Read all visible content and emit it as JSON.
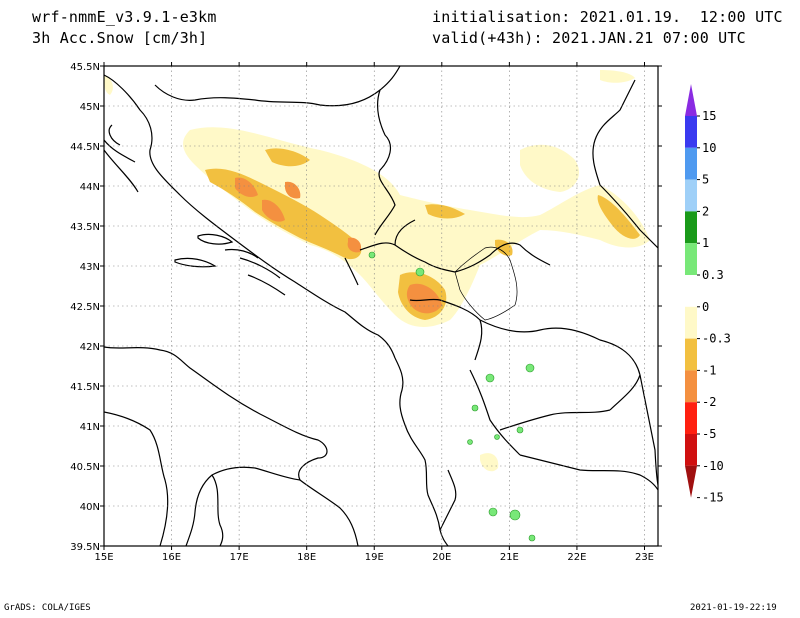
{
  "header": {
    "model": "wrf-nmmE_v3.9.1-e3km",
    "variable": "3h Acc.Snow [cm/3h]",
    "initialisation": "initialisation: 2021.01.19.  12:00 UTC",
    "valid": "valid(+43h): 2021.JAN.21 07:00 UTC"
  },
  "footer": {
    "left": "GrADS: COLA/IGES",
    "right": "2021-01-19-22:19"
  },
  "axes": {
    "lat_labels": [
      "45.5N",
      "45N",
      "44.5N",
      "44N",
      "43.5N",
      "43N",
      "42.5N",
      "42N",
      "41.5N",
      "41N",
      "40.5N",
      "40N",
      "39.5N"
    ],
    "lon_labels": [
      "15E",
      "16E",
      "17E",
      "18E",
      "19E",
      "20E",
      "21E",
      "22E",
      "23E"
    ],
    "lat_range": [
      39.5,
      45.5
    ],
    "lon_range": [
      15,
      23.2
    ],
    "grid": "dotted"
  },
  "colorbar": {
    "labels": [
      "15",
      "10",
      "5",
      "2",
      "1",
      "0.3",
      "0",
      "-0.3",
      "-1",
      "-2",
      "-5",
      "-10",
      "-15"
    ],
    "colors": [
      "#8a2be2",
      "#3a3af0",
      "#4f9af0",
      "#9fd0f8",
      "#1a9a1a",
      "#78e878",
      "#ffffff",
      "#fff9c8",
      "#f2c040",
      "#f49040",
      "#ff2010",
      "#d01010",
      "#a01010"
    ]
  },
  "map": {
    "title": "",
    "feature_colors": {
      "snow_light": "#fff9c8",
      "snow_mid": "#f2c040",
      "snow_heavy": "#f49040",
      "green": "#78e878"
    }
  }
}
